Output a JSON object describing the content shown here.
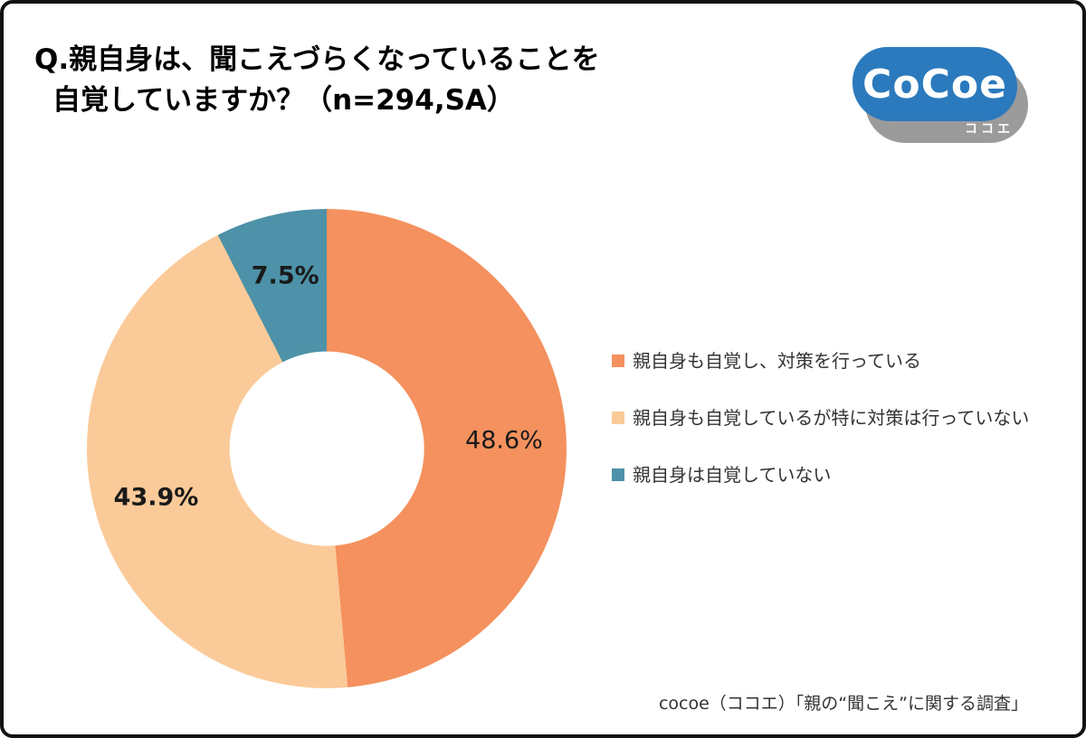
{
  "header": {
    "title_line1": "Q.親自身は、聞こえづらくなっていることを",
    "title_line2": "自覚していますか？（n=294,SA）"
  },
  "logo": {
    "text": "CoCoe",
    "subtext": "ココエ",
    "main_color": "#2B7ABD",
    "shadow_color": "#9B9B9B"
  },
  "chart_data": {
    "type": "pie",
    "donut": true,
    "inner_ratio": 0.405,
    "start_angle_deg": 0,
    "direction": "clockwise",
    "title": "Q.親自身は、聞こえづらくなっていることを自覚していますか？（n=294,SA）",
    "n": 294,
    "categories": [
      "親自身も自覚し、対策を行っている",
      "親自身も自覚しているが特に対策は行っていない",
      "親自身は自覚していない"
    ],
    "values": [
      48.6,
      43.9,
      7.5
    ],
    "labels": [
      "48.6%",
      "43.9%",
      "7.5%"
    ],
    "colors": [
      "#F4915E",
      "#FBCA99",
      "#4D92A8"
    ],
    "legend_position": "right"
  },
  "footer": {
    "source": "cocoe（ココエ）「親の“聞こえ”に関する調査」"
  }
}
